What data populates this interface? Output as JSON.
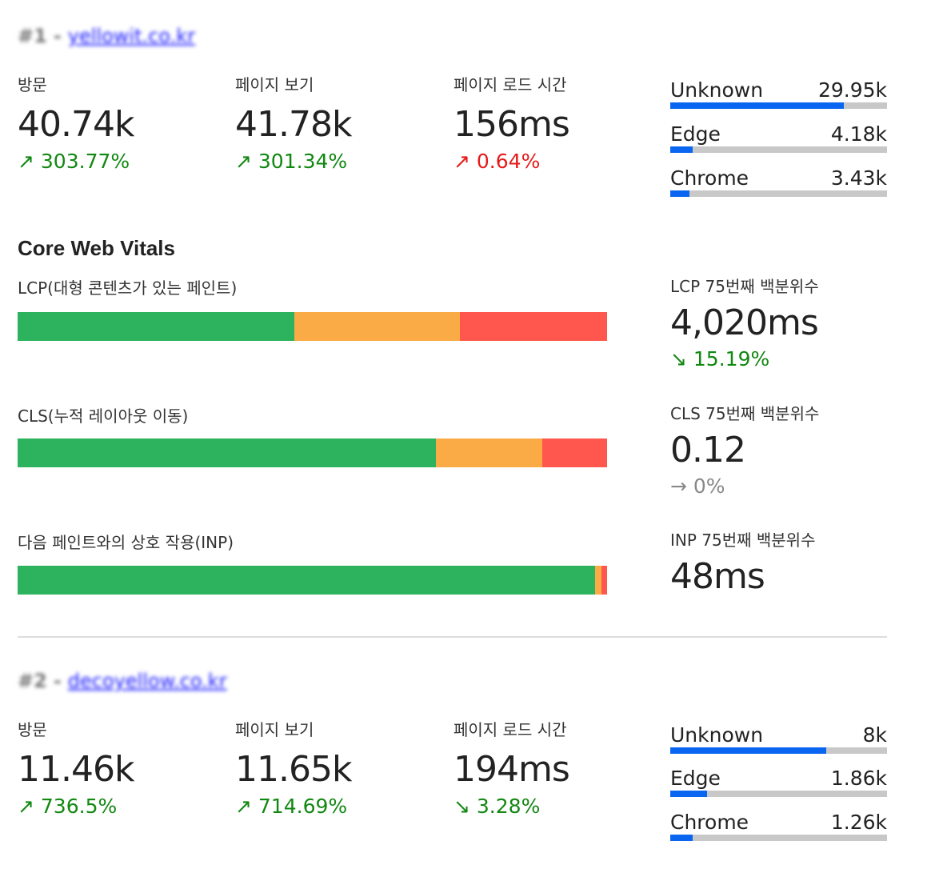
{
  "site1": {
    "rank": "#1",
    "link": "yellowit.co.kr",
    "stats": [
      {
        "label": "방문",
        "value": "40.74k",
        "arrow": "↗",
        "change": "303.77%",
        "tone": "up-good"
      },
      {
        "label": "페이지 보기",
        "value": "41.78k",
        "arrow": "↗",
        "change": "301.34%",
        "tone": "up-good"
      },
      {
        "label": "페이지 로드 시간",
        "value": "156ms",
        "arrow": "↗",
        "change": "0.64%",
        "tone": "up-bad"
      }
    ],
    "browsers": [
      {
        "name": "Unknown",
        "value": "29.95k",
        "fill": 0.8
      },
      {
        "name": "Edge",
        "value": "4.18k",
        "fill": 0.105
      },
      {
        "name": "Chrome",
        "value": "3.43k",
        "fill": 0.09
      }
    ]
  },
  "core_web_vitals": {
    "title": "Core Web Vitals",
    "metrics": [
      {
        "label": "LCP(대형 콘텐츠가 있는 페인트)",
        "good": 0.47,
        "mid": 0.28,
        "bad": 0.25,
        "pct_label": "LCP 75번째 백분위수",
        "pct_value": "4,020ms",
        "arrow": "↘",
        "change": "15.19%",
        "tone": "down-good"
      },
      {
        "label": "CLS(누적 레이아웃 이동)",
        "good": 0.71,
        "mid": 0.18,
        "bad": 0.11,
        "pct_label": "CLS 75번째 백분위수",
        "pct_value": "0.12",
        "arrow": "→",
        "change": "0%",
        "tone": "neutral"
      },
      {
        "label": "다음 페인트와의 상호 작용(INP)",
        "good": 0.98,
        "mid": 0.01,
        "bad": 0.01,
        "pct_label": "INP 75번째 백분위수",
        "pct_value": "48ms",
        "arrow": "",
        "change": "",
        "tone": "neutral"
      }
    ]
  },
  "site2": {
    "rank": "#2",
    "link": "decoyellow.co.kr",
    "stats": [
      {
        "label": "방문",
        "value": "11.46k",
        "arrow": "↗",
        "change": "736.5%",
        "tone": "up-good"
      },
      {
        "label": "페이지 보기",
        "value": "11.65k",
        "arrow": "↗",
        "change": "714.69%",
        "tone": "up-good"
      },
      {
        "label": "페이지 로드 시간",
        "value": "194ms",
        "arrow": "↘",
        "change": "3.28%",
        "tone": "down-good"
      }
    ],
    "browsers": [
      {
        "name": "Unknown",
        "value": "8k",
        "fill": 0.72
      },
      {
        "name": "Edge",
        "value": "1.86k",
        "fill": 0.17
      },
      {
        "name": "Chrome",
        "value": "1.26k",
        "fill": 0.105
      }
    ]
  }
}
